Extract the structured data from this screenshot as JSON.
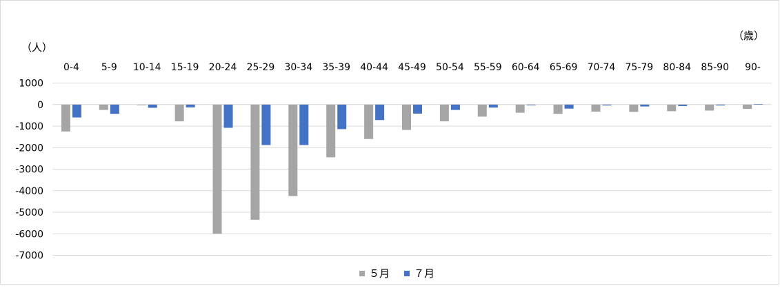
{
  "chart_data": {
    "type": "bar",
    "ylabel": "（人）",
    "xlabel": "（歳）",
    "categories": [
      "0-4",
      "5-9",
      "10-14",
      "15-19",
      "20-24",
      "25-29",
      "30-34",
      "35-39",
      "40-44",
      "45-49",
      "50-54",
      "55-59",
      "60-64",
      "65-69",
      "70-74",
      "75-79",
      "80-84",
      "85-90",
      "90-"
    ],
    "series": [
      {
        "name": "５月",
        "color": "#a5a5a5",
        "values": [
          -1250,
          -250,
          -30,
          -780,
          -6000,
          -5350,
          -4250,
          -2450,
          -1600,
          -1180,
          -780,
          -560,
          -380,
          -430,
          -330,
          -340,
          -310,
          -280,
          -200
        ]
      },
      {
        "name": "７月",
        "color": "#4472c4",
        "values": [
          -600,
          -430,
          -150,
          -130,
          -1080,
          -1880,
          -1880,
          -1140,
          -720,
          -420,
          -250,
          -140,
          -30,
          -190,
          -40,
          -90,
          -70,
          -40,
          20
        ]
      }
    ],
    "ylim": [
      -7000,
      1000
    ],
    "yticks": [
      1000,
      0,
      -1000,
      -2000,
      -3000,
      -4000,
      -5000,
      -6000,
      -7000
    ],
    "grid": true,
    "legend_position": "bottom"
  }
}
